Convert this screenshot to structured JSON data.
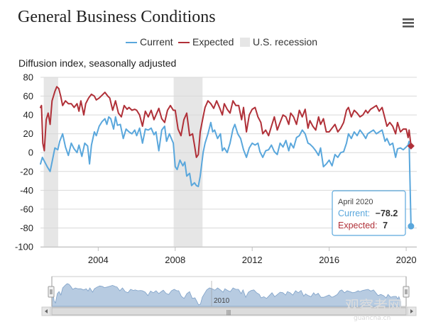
{
  "chart_data": {
    "type": "line",
    "title": "General Business Conditions",
    "ylabel": "Diffusion index, seasonally adjusted",
    "xlabel": "",
    "ylim": [
      -100,
      80
    ],
    "xlim": [
      2001.0,
      2020.55
    ],
    "yticks": [
      80,
      60,
      40,
      20,
      0,
      -20,
      -40,
      -60,
      -80,
      -100
    ],
    "ytick_labels": [
      "80",
      "60",
      "40",
      "20",
      "0",
      "-20",
      "-40",
      "-60",
      "-80",
      "-100"
    ],
    "xticks": [
      2004,
      2008,
      2012,
      2016,
      2020
    ],
    "xtick_labels": [
      "2004",
      "2008",
      "2012",
      "2016",
      "2020"
    ],
    "legend": [
      "Current",
      "Expected",
      "U.S. recession"
    ],
    "recessions": [
      [
        2001.17,
        2001.92
      ],
      [
        2007.92,
        2009.42
      ]
    ],
    "series": [
      {
        "name": "Current",
        "color": "#5aa7dc",
        "points": [
          [
            2001.0,
            -12
          ],
          [
            2001.1,
            -5
          ],
          [
            2001.2,
            -9
          ],
          [
            2001.35,
            -15
          ],
          [
            2001.5,
            -20
          ],
          [
            2001.6,
            -10
          ],
          [
            2001.75,
            5
          ],
          [
            2001.9,
            3
          ],
          [
            2002.0,
            12
          ],
          [
            2002.15,
            20
          ],
          [
            2002.3,
            6
          ],
          [
            2002.45,
            -3
          ],
          [
            2002.6,
            10
          ],
          [
            2002.75,
            4
          ],
          [
            2002.9,
            0
          ],
          [
            2003.0,
            8
          ],
          [
            2003.15,
            -4
          ],
          [
            2003.3,
            10
          ],
          [
            2003.45,
            7
          ],
          [
            2003.55,
            -12
          ],
          [
            2003.65,
            8
          ],
          [
            2003.8,
            22
          ],
          [
            2003.9,
            18
          ],
          [
            2004.05,
            28
          ],
          [
            2004.2,
            33
          ],
          [
            2004.35,
            36
          ],
          [
            2004.45,
            30
          ],
          [
            2004.55,
            38
          ],
          [
            2004.65,
            36
          ],
          [
            2004.8,
            25
          ],
          [
            2004.9,
            38
          ],
          [
            2005.0,
            29
          ],
          [
            2005.15,
            30
          ],
          [
            2005.3,
            15
          ],
          [
            2005.45,
            25
          ],
          [
            2005.6,
            22
          ],
          [
            2005.75,
            20
          ],
          [
            2005.9,
            24
          ],
          [
            2006.0,
            18
          ],
          [
            2006.15,
            26
          ],
          [
            2006.3,
            10
          ],
          [
            2006.45,
            25
          ],
          [
            2006.6,
            24
          ],
          [
            2006.75,
            26
          ],
          [
            2006.9,
            19
          ],
          [
            2007.0,
            22
          ],
          [
            2007.15,
            2
          ],
          [
            2007.3,
            24
          ],
          [
            2007.45,
            28
          ],
          [
            2007.55,
            12
          ],
          [
            2007.7,
            20
          ],
          [
            2007.9,
            10
          ],
          [
            2008.0,
            -15
          ],
          [
            2008.1,
            -18
          ],
          [
            2008.25,
            -8
          ],
          [
            2008.4,
            -14
          ],
          [
            2008.5,
            -10
          ],
          [
            2008.6,
            -25
          ],
          [
            2008.75,
            -22
          ],
          [
            2008.85,
            -35
          ],
          [
            2009.0,
            -32
          ],
          [
            2009.1,
            -35
          ],
          [
            2009.2,
            -36
          ],
          [
            2009.3,
            -25
          ],
          [
            2009.45,
            0
          ],
          [
            2009.55,
            10
          ],
          [
            2009.7,
            20
          ],
          [
            2009.85,
            32
          ],
          [
            2009.95,
            22
          ],
          [
            2010.05,
            24
          ],
          [
            2010.2,
            15
          ],
          [
            2010.35,
            20
          ],
          [
            2010.45,
            2
          ],
          [
            2010.55,
            5
          ],
          [
            2010.7,
            0
          ],
          [
            2010.85,
            10
          ],
          [
            2011.0,
            25
          ],
          [
            2011.1,
            30
          ],
          [
            2011.25,
            20
          ],
          [
            2011.4,
            15
          ],
          [
            2011.55,
            3
          ],
          [
            2011.7,
            -5
          ],
          [
            2011.85,
            5
          ],
          [
            2012.0,
            10
          ],
          [
            2012.15,
            8
          ],
          [
            2012.3,
            10
          ],
          [
            2012.4,
            1
          ],
          [
            2012.55,
            -5
          ],
          [
            2012.7,
            2
          ],
          [
            2012.85,
            3
          ],
          [
            2013.0,
            8
          ],
          [
            2013.15,
            1
          ],
          [
            2013.3,
            -2
          ],
          [
            2013.45,
            10
          ],
          [
            2013.6,
            6
          ],
          [
            2013.75,
            13
          ],
          [
            2013.9,
            2
          ],
          [
            2014.0,
            10
          ],
          [
            2014.15,
            5
          ],
          [
            2014.3,
            16
          ],
          [
            2014.45,
            18
          ],
          [
            2014.6,
            24
          ],
          [
            2014.75,
            20
          ],
          [
            2014.9,
            10
          ],
          [
            2015.0,
            9
          ],
          [
            2015.15,
            6
          ],
          [
            2015.3,
            2
          ],
          [
            2015.45,
            -3
          ],
          [
            2015.55,
            5
          ],
          [
            2015.7,
            -15
          ],
          [
            2015.85,
            -12
          ],
          [
            2016.0,
            -8
          ],
          [
            2016.15,
            -14
          ],
          [
            2016.3,
            -2
          ],
          [
            2016.45,
            -5
          ],
          [
            2016.6,
            0
          ],
          [
            2016.75,
            1
          ],
          [
            2016.9,
            10
          ],
          [
            2017.0,
            20
          ],
          [
            2017.15,
            15
          ],
          [
            2017.3,
            22
          ],
          [
            2017.45,
            18
          ],
          [
            2017.6,
            24
          ],
          [
            2017.75,
            20
          ],
          [
            2017.9,
            15
          ],
          [
            2018.0,
            20
          ],
          [
            2018.15,
            22
          ],
          [
            2018.3,
            24
          ],
          [
            2018.45,
            20
          ],
          [
            2018.6,
            22
          ],
          [
            2018.75,
            24
          ],
          [
            2018.9,
            12
          ],
          [
            2019.0,
            15
          ],
          [
            2019.15,
            8
          ],
          [
            2019.3,
            10
          ],
          [
            2019.45,
            -5
          ],
          [
            2019.55,
            4
          ],
          [
            2019.7,
            5
          ],
          [
            2019.85,
            3
          ],
          [
            2020.0,
            6
          ],
          [
            2020.1,
            8
          ],
          [
            2020.15,
            12
          ],
          [
            2020.25,
            -78.2
          ]
        ]
      },
      {
        "name": "Expected",
        "color": "#b03038",
        "points": [
          [
            2001.0,
            48
          ],
          [
            2001.05,
            50
          ],
          [
            2001.12,
            10
          ],
          [
            2001.2,
            2
          ],
          [
            2001.3,
            35
          ],
          [
            2001.4,
            42
          ],
          [
            2001.5,
            30
          ],
          [
            2001.6,
            55
          ],
          [
            2001.75,
            65
          ],
          [
            2001.85,
            70
          ],
          [
            2001.95,
            68
          ],
          [
            2002.05,
            60
          ],
          [
            2002.15,
            50
          ],
          [
            2002.3,
            55
          ],
          [
            2002.45,
            52
          ],
          [
            2002.6,
            52
          ],
          [
            2002.75,
            48
          ],
          [
            2002.9,
            52
          ],
          [
            2003.0,
            44
          ],
          [
            2003.1,
            55
          ],
          [
            2003.25,
            40
          ],
          [
            2003.35,
            52
          ],
          [
            2003.5,
            58
          ],
          [
            2003.65,
            62
          ],
          [
            2003.8,
            60
          ],
          [
            2003.9,
            56
          ],
          [
            2004.05,
            58
          ],
          [
            2004.2,
            61
          ],
          [
            2004.35,
            64
          ],
          [
            2004.5,
            60
          ],
          [
            2004.6,
            58
          ],
          [
            2004.75,
            45
          ],
          [
            2004.9,
            55
          ],
          [
            2005.05,
            42
          ],
          [
            2005.2,
            38
          ],
          [
            2005.35,
            50
          ],
          [
            2005.5,
            46
          ],
          [
            2005.6,
            48
          ],
          [
            2005.75,
            45
          ],
          [
            2005.9,
            46
          ],
          [
            2006.0,
            45
          ],
          [
            2006.15,
            40
          ],
          [
            2006.3,
            28
          ],
          [
            2006.45,
            44
          ],
          [
            2006.6,
            38
          ],
          [
            2006.75,
            45
          ],
          [
            2006.9,
            35
          ],
          [
            2007.0,
            40
          ],
          [
            2007.15,
            47
          ],
          [
            2007.3,
            36
          ],
          [
            2007.45,
            32
          ],
          [
            2007.6,
            45
          ],
          [
            2007.75,
            50
          ],
          [
            2007.9,
            45
          ],
          [
            2008.0,
            45
          ],
          [
            2008.15,
            25
          ],
          [
            2008.3,
            18
          ],
          [
            2008.45,
            35
          ],
          [
            2008.6,
            42
          ],
          [
            2008.75,
            18
          ],
          [
            2008.9,
            20
          ],
          [
            2009.0,
            8
          ],
          [
            2009.1,
            -5
          ],
          [
            2009.2,
            -2
          ],
          [
            2009.3,
            22
          ],
          [
            2009.45,
            38
          ],
          [
            2009.55,
            48
          ],
          [
            2009.7,
            55
          ],
          [
            2009.85,
            52
          ],
          [
            2010.0,
            47
          ],
          [
            2010.15,
            55
          ],
          [
            2010.3,
            48
          ],
          [
            2010.45,
            40
          ],
          [
            2010.55,
            52
          ],
          [
            2010.7,
            46
          ],
          [
            2010.85,
            42
          ],
          [
            2011.0,
            55
          ],
          [
            2011.15,
            50
          ],
          [
            2011.3,
            50
          ],
          [
            2011.45,
            35
          ],
          [
            2011.55,
            48
          ],
          [
            2011.7,
            22
          ],
          [
            2011.85,
            40
          ],
          [
            2012.0,
            46
          ],
          [
            2012.15,
            48
          ],
          [
            2012.3,
            38
          ],
          [
            2012.45,
            32
          ],
          [
            2012.55,
            20
          ],
          [
            2012.7,
            24
          ],
          [
            2012.85,
            18
          ],
          [
            2013.0,
            28
          ],
          [
            2013.15,
            38
          ],
          [
            2013.3,
            24
          ],
          [
            2013.45,
            32
          ],
          [
            2013.6,
            40
          ],
          [
            2013.75,
            38
          ],
          [
            2013.9,
            30
          ],
          [
            2014.0,
            42
          ],
          [
            2014.15,
            38
          ],
          [
            2014.3,
            30
          ],
          [
            2014.45,
            45
          ],
          [
            2014.6,
            38
          ],
          [
            2014.75,
            46
          ],
          [
            2014.9,
            26
          ],
          [
            2015.0,
            34
          ],
          [
            2015.15,
            28
          ],
          [
            2015.3,
            24
          ],
          [
            2015.45,
            38
          ],
          [
            2015.55,
            30
          ],
          [
            2015.7,
            36
          ],
          [
            2015.85,
            22
          ],
          [
            2016.0,
            22
          ],
          [
            2016.15,
            26
          ],
          [
            2016.3,
            30
          ],
          [
            2016.45,
            22
          ],
          [
            2016.6,
            26
          ],
          [
            2016.75,
            32
          ],
          [
            2016.9,
            45
          ],
          [
            2017.0,
            48
          ],
          [
            2017.15,
            38
          ],
          [
            2017.3,
            45
          ],
          [
            2017.45,
            42
          ],
          [
            2017.6,
            38
          ],
          [
            2017.75,
            40
          ],
          [
            2017.9,
            45
          ],
          [
            2018.0,
            42
          ],
          [
            2018.15,
            46
          ],
          [
            2018.3,
            48
          ],
          [
            2018.45,
            50
          ],
          [
            2018.6,
            44
          ],
          [
            2018.75,
            48
          ],
          [
            2018.9,
            36
          ],
          [
            2019.0,
            28
          ],
          [
            2019.15,
            32
          ],
          [
            2019.3,
            28
          ],
          [
            2019.45,
            20
          ],
          [
            2019.55,
            32
          ],
          [
            2019.7,
            22
          ],
          [
            2019.85,
            25
          ],
          [
            2020.0,
            25
          ],
          [
            2020.1,
            16
          ],
          [
            2020.15,
            24
          ],
          [
            2020.25,
            7
          ]
        ]
      }
    ]
  },
  "tooltip": {
    "date": "April 2020",
    "current_label": "Current:",
    "current_value": "−78.2",
    "expected_label": "Expected:",
    "expected_value": "7"
  },
  "navigator": {
    "label": "2010",
    "handle_glyph": "|||"
  },
  "menu_icon": "hamburger-menu-icon",
  "watermark": {
    "text": "观察者网",
    "sub": "guancha.cn"
  },
  "colors": {
    "current": "#5aa7dc",
    "expected": "#b03038",
    "recession": "#e6e6e6",
    "navigator_fill": "#b7cbe1"
  }
}
